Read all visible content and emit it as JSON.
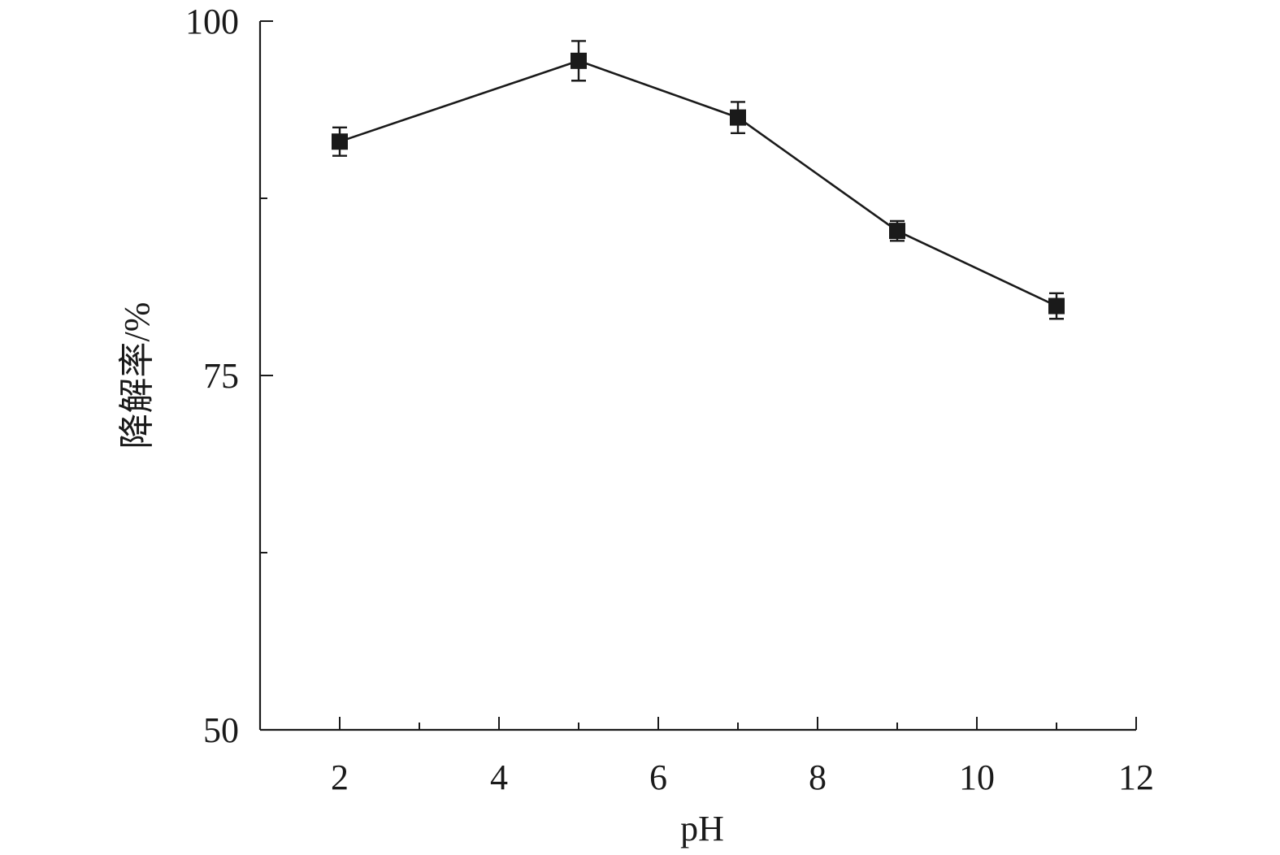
{
  "chart_data": {
    "type": "line",
    "title": "",
    "xlabel": "pH",
    "ylabel": "降解率/%",
    "xlim": [
      1,
      12
    ],
    "ylim": [
      50,
      100
    ],
    "x_major_ticks": [
      2,
      4,
      6,
      8,
      10,
      12
    ],
    "x_minor_ticks": [
      3,
      5,
      7,
      9,
      11
    ],
    "y_major_ticks": [
      50,
      75,
      100
    ],
    "y_minor_ticks": [
      62.5,
      87.5
    ],
    "grid": false,
    "legend": "none",
    "marker": "square",
    "color": "#1a1a1a",
    "series": [
      {
        "x": [
          2,
          5,
          7,
          9,
          11
        ],
        "y": [
          91.5,
          97.2,
          93.2,
          85.2,
          79.9
        ],
        "error": [
          1.0,
          1.4,
          1.1,
          0.7,
          0.9
        ]
      }
    ]
  }
}
